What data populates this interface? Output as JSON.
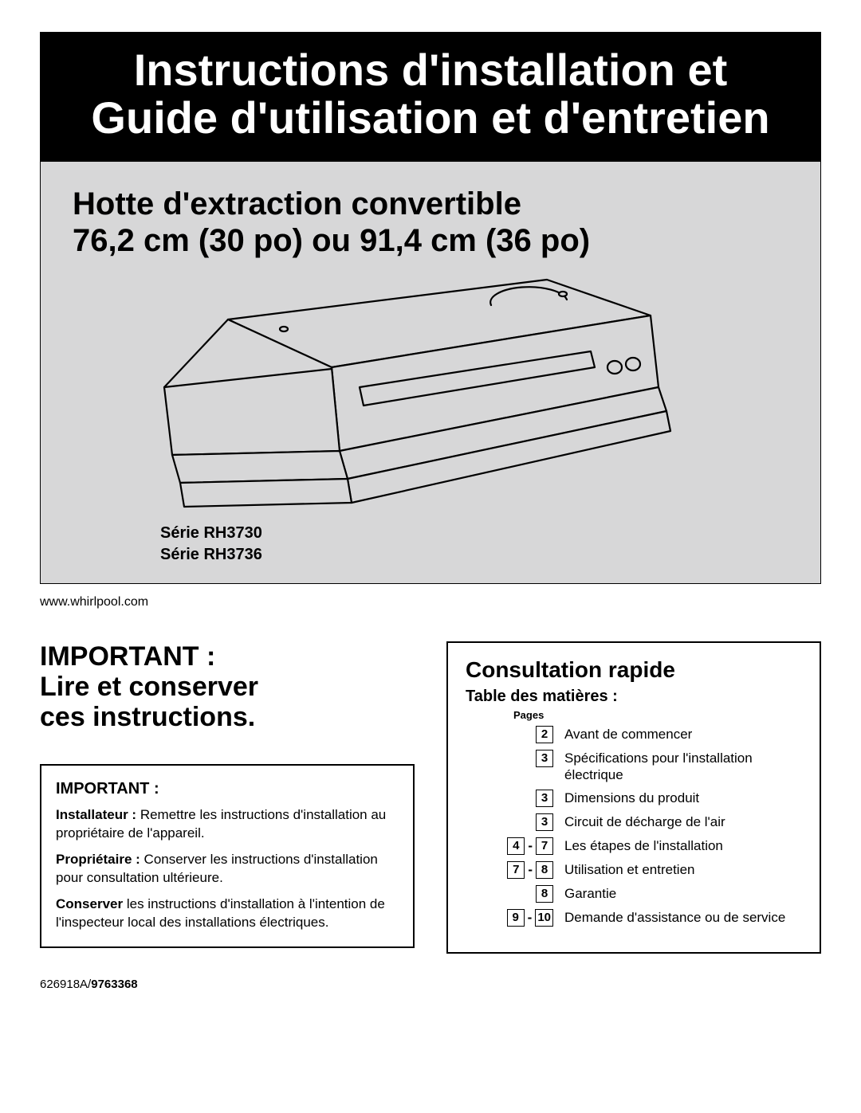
{
  "banner": {
    "line1": "Instructions d'installation et",
    "line2": "Guide d'utilisation et d'entretien"
  },
  "subtitle": {
    "line1": "Hotte d'extraction convertible",
    "line2": "76,2 cm (30 po) ou 91,4 cm (36 po)"
  },
  "series": {
    "a": "Série RH3730",
    "b": "Série RH3736"
  },
  "url": "www.whirlpool.com",
  "important_heading": {
    "l1": "IMPORTANT :",
    "l2": "Lire et conserver",
    "l3": "ces instructions."
  },
  "important_box": {
    "hdr": "IMPORTANT :",
    "p1_bold": "Installateur :",
    "p1_rest": " Remettre les instructions d'installation au propriétaire de l'appareil.",
    "p2_bold": "Propriétaire :",
    "p2_rest": " Conserver les instructions d'installation pour consultation ultérieure.",
    "p3_bold": "Conserver",
    "p3_rest": " les instructions d'installation à l'intention de l'inspecteur local des installations électriques."
  },
  "toc": {
    "title": "Consultation rapide",
    "subtitle": "Table des matières :",
    "pages_label": "Pages",
    "rows": [
      {
        "pages": [
          "2"
        ],
        "text": "Avant de commencer"
      },
      {
        "pages": [
          "3"
        ],
        "text": "Spécifications pour l'installation électrique"
      },
      {
        "pages": [
          "3"
        ],
        "text": "Dimensions du produit"
      },
      {
        "pages": [
          "3"
        ],
        "text": "Circuit de décharge de l'air"
      },
      {
        "pages": [
          "4",
          "7"
        ],
        "text": "Les étapes de l'installation"
      },
      {
        "pages": [
          "7",
          "8"
        ],
        "text": "Utilisation et entretien"
      },
      {
        "pages": [
          "8"
        ],
        "text": "Garantie"
      },
      {
        "pages": [
          "9",
          "10"
        ],
        "text": "Demande d'assistance ou de service"
      }
    ]
  },
  "docnum": {
    "plain": "626918A/",
    "bold": "9763368"
  }
}
